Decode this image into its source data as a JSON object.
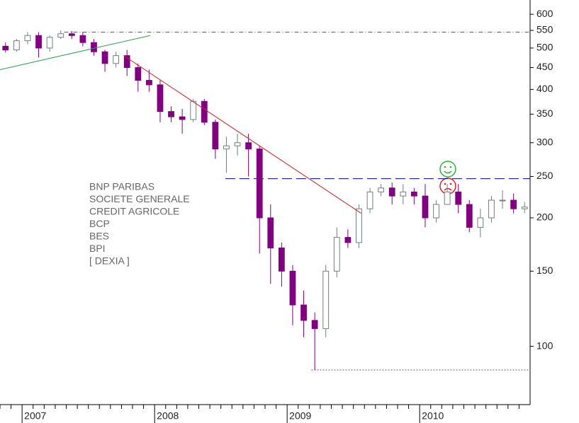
{
  "chart_data": {
    "type": "candlestick",
    "categories": [
      null,
      null,
      "2007",
      null,
      null,
      null,
      null,
      null,
      null,
      null,
      null,
      null,
      null,
      null,
      "2008",
      null,
      null,
      null,
      null,
      null,
      null,
      null,
      null,
      null,
      null,
      null,
      "2009",
      null,
      null,
      null,
      null,
      null,
      null,
      null,
      null,
      null,
      null,
      null,
      "2010",
      null,
      null,
      null,
      null,
      null,
      null,
      null,
      null,
      null
    ],
    "open": [
      505,
      495,
      520,
      535,
      500,
      530,
      540,
      535,
      515,
      490,
      460,
      480,
      450,
      420,
      410,
      355,
      345,
      340,
      375,
      335,
      290,
      295,
      300,
      290,
      200,
      170,
      150,
      125,
      115,
      110,
      150,
      180,
      175,
      210,
      230,
      235,
      225,
      230,
      225,
      200,
      215,
      230,
      215,
      190,
      200,
      220,
      220,
      210
    ],
    "high": [
      515,
      525,
      545,
      545,
      535,
      550,
      548,
      545,
      525,
      495,
      490,
      495,
      460,
      445,
      420,
      365,
      360,
      380,
      380,
      340,
      310,
      315,
      315,
      295,
      215,
      175,
      155,
      135,
      120,
      155,
      190,
      188,
      215,
      235,
      240,
      242,
      240,
      235,
      240,
      220,
      240,
      240,
      220,
      210,
      225,
      232,
      228,
      218
    ],
    "low": [
      488,
      490,
      510,
      475,
      490,
      525,
      525,
      505,
      480,
      440,
      450,
      430,
      395,
      395,
      335,
      335,
      315,
      335,
      330,
      275,
      255,
      280,
      250,
      165,
      140,
      138,
      112,
      105,
      88,
      105,
      145,
      170,
      170,
      205,
      225,
      215,
      215,
      215,
      190,
      195,
      215,
      205,
      185,
      180,
      195,
      210,
      205,
      205
    ],
    "close": [
      495,
      520,
      535,
      500,
      530,
      540,
      535,
      515,
      490,
      460,
      480,
      450,
      420,
      410,
      355,
      345,
      340,
      375,
      335,
      290,
      295,
      300,
      290,
      200,
      170,
      150,
      125,
      115,
      110,
      150,
      180,
      175,
      210,
      230,
      235,
      225,
      230,
      225,
      200,
      215,
      230,
      215,
      190,
      200,
      220,
      220,
      210,
      212
    ],
    "up_color": "#ffffff",
    "down_color": "#800080",
    "edge_color": "#708080",
    "log_scale": true,
    "ylim": [
      73,
      648
    ],
    "yticks": [
      100,
      150,
      200,
      250,
      300,
      350,
      400,
      450,
      500,
      550,
      600
    ],
    "reference_lines": [
      {
        "value": 545,
        "from": 5.8,
        "color": "#555555",
        "style": "dashdot"
      },
      {
        "value": 247,
        "from": 20.4,
        "color": "#000080",
        "style": "dashed"
      },
      {
        "value": 88,
        "from": 28.2,
        "color": "#555555",
        "style": "dotted"
      }
    ],
    "trend_lines": [
      {
        "from": [
          0,
          445
        ],
        "to": [
          13.6,
          535
        ],
        "color": "#30a050"
      },
      {
        "from": [
          11.2,
          480
        ],
        "to": [
          32.7,
          205
        ],
        "color": "#d02020"
      }
    ],
    "notes": [
      "BNP PARIBAS",
      "SOCIETE GENERALE",
      "CREDIT AGRICOLE",
      "BCP",
      "BES",
      "BPI",
      "[ DEXIA ]"
    ]
  }
}
